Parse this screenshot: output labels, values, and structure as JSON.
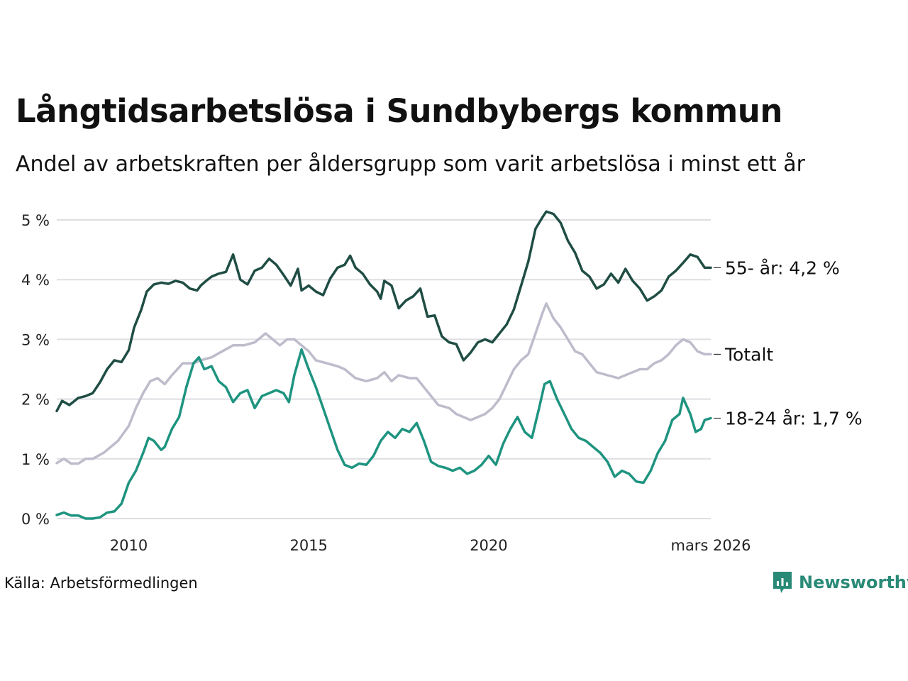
{
  "title": "Långtidsarbetslösa i Sundbybergs kommun",
  "subtitle": "Andel av arbetskraften per åldersgrupp som varit arbetslösa i minst ett år",
  "source": "Källa: Arbetsförmedlingen",
  "brand": {
    "name": "Newsworthy",
    "color": "#2a8a78"
  },
  "chart_data": {
    "type": "line",
    "title": "Långtidsarbetslösa i Sundbybergs kommun",
    "ylabel": "",
    "xlabel": "",
    "xlim": [
      2008.0,
      2026.17
    ],
    "ylim": [
      0,
      5
    ],
    "y_ticks": [
      0,
      1,
      2,
      3,
      4,
      5
    ],
    "y_tick_labels": [
      "0 %",
      "1 %",
      "2 %",
      "3 %",
      "4 %",
      "5 %"
    ],
    "x_ticks": [
      2010,
      2015,
      2020,
      2026.17
    ],
    "x_tick_labels": [
      "2010",
      "2015",
      "2020",
      "mars 2026"
    ],
    "series": [
      {
        "name": "55- år",
        "label": "55- år: 4,2 %",
        "color": "#1f4d44",
        "points": [
          [
            2008.0,
            1.8
          ],
          [
            2008.15,
            1.97
          ],
          [
            2008.35,
            1.9
          ],
          [
            2008.6,
            2.02
          ],
          [
            2008.8,
            2.05
          ],
          [
            2009.0,
            2.1
          ],
          [
            2009.2,
            2.28
          ],
          [
            2009.4,
            2.5
          ],
          [
            2009.6,
            2.65
          ],
          [
            2009.8,
            2.62
          ],
          [
            2010.0,
            2.82
          ],
          [
            2010.15,
            3.2
          ],
          [
            2010.35,
            3.5
          ],
          [
            2010.5,
            3.8
          ],
          [
            2010.7,
            3.92
          ],
          [
            2010.9,
            3.95
          ],
          [
            2011.1,
            3.93
          ],
          [
            2011.3,
            3.98
          ],
          [
            2011.5,
            3.95
          ],
          [
            2011.7,
            3.85
          ],
          [
            2011.9,
            3.82
          ],
          [
            2012.0,
            3.9
          ],
          [
            2012.15,
            3.98
          ],
          [
            2012.3,
            4.05
          ],
          [
            2012.5,
            4.1
          ],
          [
            2012.7,
            4.13
          ],
          [
            2012.9,
            4.42
          ],
          [
            2013.1,
            4.0
          ],
          [
            2013.3,
            3.92
          ],
          [
            2013.5,
            4.15
          ],
          [
            2013.7,
            4.2
          ],
          [
            2013.9,
            4.35
          ],
          [
            2014.1,
            4.25
          ],
          [
            2014.3,
            4.08
          ],
          [
            2014.5,
            3.9
          ],
          [
            2014.7,
            4.18
          ],
          [
            2014.8,
            3.82
          ],
          [
            2015.0,
            3.9
          ],
          [
            2015.2,
            3.8
          ],
          [
            2015.4,
            3.74
          ],
          [
            2015.6,
            4.02
          ],
          [
            2015.8,
            4.2
          ],
          [
            2016.0,
            4.25
          ],
          [
            2016.15,
            4.4
          ],
          [
            2016.3,
            4.2
          ],
          [
            2016.5,
            4.1
          ],
          [
            2016.7,
            3.92
          ],
          [
            2016.9,
            3.8
          ],
          [
            2017.0,
            3.68
          ],
          [
            2017.1,
            3.98
          ],
          [
            2017.3,
            3.9
          ],
          [
            2017.5,
            3.52
          ],
          [
            2017.7,
            3.65
          ],
          [
            2017.9,
            3.72
          ],
          [
            2018.1,
            3.85
          ],
          [
            2018.3,
            3.38
          ],
          [
            2018.5,
            3.4
          ],
          [
            2018.7,
            3.05
          ],
          [
            2018.9,
            2.95
          ],
          [
            2019.1,
            2.92
          ],
          [
            2019.3,
            2.65
          ],
          [
            2019.5,
            2.78
          ],
          [
            2019.7,
            2.95
          ],
          [
            2019.9,
            3.0
          ],
          [
            2020.1,
            2.95
          ],
          [
            2020.3,
            3.1
          ],
          [
            2020.5,
            3.25
          ],
          [
            2020.7,
            3.5
          ],
          [
            2020.9,
            3.9
          ],
          [
            2021.1,
            4.3
          ],
          [
            2021.3,
            4.85
          ],
          [
            2021.5,
            5.05
          ],
          [
            2021.6,
            5.14
          ],
          [
            2021.8,
            5.1
          ],
          [
            2022.0,
            4.95
          ],
          [
            2022.2,
            4.65
          ],
          [
            2022.4,
            4.45
          ],
          [
            2022.6,
            4.15
          ],
          [
            2022.8,
            4.05
          ],
          [
            2023.0,
            3.85
          ],
          [
            2023.2,
            3.92
          ],
          [
            2023.4,
            4.1
          ],
          [
            2023.6,
            3.95
          ],
          [
            2023.8,
            4.18
          ],
          [
            2024.0,
            3.98
          ],
          [
            2024.2,
            3.85
          ],
          [
            2024.4,
            3.65
          ],
          [
            2024.6,
            3.72
          ],
          [
            2024.8,
            3.82
          ],
          [
            2025.0,
            4.05
          ],
          [
            2025.2,
            4.15
          ],
          [
            2025.4,
            4.28
          ],
          [
            2025.6,
            4.42
          ],
          [
            2025.8,
            4.38
          ],
          [
            2026.0,
            4.2
          ],
          [
            2026.17,
            4.2
          ]
        ]
      },
      {
        "name": "Totalt",
        "label": "Totalt",
        "color": "#bdbccb",
        "points": [
          [
            2008.0,
            0.93
          ],
          [
            2008.2,
            1.0
          ],
          [
            2008.4,
            0.92
          ],
          [
            2008.6,
            0.92
          ],
          [
            2008.8,
            1.0
          ],
          [
            2009.0,
            1.0
          ],
          [
            2009.3,
            1.1
          ],
          [
            2009.5,
            1.2
          ],
          [
            2009.7,
            1.3
          ],
          [
            2010.0,
            1.55
          ],
          [
            2010.2,
            1.85
          ],
          [
            2010.4,
            2.1
          ],
          [
            2010.6,
            2.3
          ],
          [
            2010.8,
            2.35
          ],
          [
            2011.0,
            2.25
          ],
          [
            2011.2,
            2.4
          ],
          [
            2011.5,
            2.6
          ],
          [
            2011.8,
            2.6
          ],
          [
            2012.0,
            2.65
          ],
          [
            2012.3,
            2.7
          ],
          [
            2012.6,
            2.8
          ],
          [
            2012.9,
            2.9
          ],
          [
            2013.2,
            2.9
          ],
          [
            2013.5,
            2.95
          ],
          [
            2013.8,
            3.1
          ],
          [
            2014.0,
            3.0
          ],
          [
            2014.2,
            2.9
          ],
          [
            2014.4,
            3.0
          ],
          [
            2014.6,
            3.0
          ],
          [
            2014.8,
            2.9
          ],
          [
            2015.0,
            2.8
          ],
          [
            2015.2,
            2.65
          ],
          [
            2015.5,
            2.6
          ],
          [
            2015.8,
            2.55
          ],
          [
            2016.0,
            2.5
          ],
          [
            2016.3,
            2.35
          ],
          [
            2016.6,
            2.3
          ],
          [
            2016.9,
            2.35
          ],
          [
            2017.1,
            2.45
          ],
          [
            2017.3,
            2.3
          ],
          [
            2017.5,
            2.4
          ],
          [
            2017.8,
            2.35
          ],
          [
            2018.0,
            2.35
          ],
          [
            2018.2,
            2.2
          ],
          [
            2018.4,
            2.05
          ],
          [
            2018.6,
            1.9
          ],
          [
            2018.9,
            1.85
          ],
          [
            2019.1,
            1.75
          ],
          [
            2019.3,
            1.7
          ],
          [
            2019.5,
            1.65
          ],
          [
            2019.7,
            1.7
          ],
          [
            2019.9,
            1.75
          ],
          [
            2020.1,
            1.85
          ],
          [
            2020.3,
            2.0
          ],
          [
            2020.5,
            2.25
          ],
          [
            2020.7,
            2.5
          ],
          [
            2020.9,
            2.65
          ],
          [
            2021.1,
            2.75
          ],
          [
            2021.3,
            3.1
          ],
          [
            2021.5,
            3.45
          ],
          [
            2021.6,
            3.6
          ],
          [
            2021.8,
            3.35
          ],
          [
            2022.0,
            3.2
          ],
          [
            2022.2,
            3.0
          ],
          [
            2022.4,
            2.8
          ],
          [
            2022.6,
            2.75
          ],
          [
            2022.8,
            2.6
          ],
          [
            2023.0,
            2.45
          ],
          [
            2023.3,
            2.4
          ],
          [
            2023.6,
            2.35
          ],
          [
            2023.8,
            2.4
          ],
          [
            2024.0,
            2.45
          ],
          [
            2024.2,
            2.5
          ],
          [
            2024.4,
            2.5
          ],
          [
            2024.6,
            2.6
          ],
          [
            2024.8,
            2.65
          ],
          [
            2025.0,
            2.75
          ],
          [
            2025.2,
            2.9
          ],
          [
            2025.4,
            3.0
          ],
          [
            2025.6,
            2.95
          ],
          [
            2025.8,
            2.8
          ],
          [
            2026.0,
            2.75
          ],
          [
            2026.17,
            2.75
          ]
        ]
      },
      {
        "name": "18-24 år",
        "label": "18-24 år: 1,7 %",
        "color": "#1e9480",
        "points": [
          [
            2008.0,
            0.06
          ],
          [
            2008.2,
            0.1
          ],
          [
            2008.4,
            0.05
          ],
          [
            2008.6,
            0.05
          ],
          [
            2008.8,
            0.0
          ],
          [
            2009.0,
            0.0
          ],
          [
            2009.2,
            0.02
          ],
          [
            2009.4,
            0.1
          ],
          [
            2009.6,
            0.12
          ],
          [
            2009.8,
            0.25
          ],
          [
            2010.0,
            0.6
          ],
          [
            2010.2,
            0.8
          ],
          [
            2010.4,
            1.1
          ],
          [
            2010.55,
            1.35
          ],
          [
            2010.7,
            1.3
          ],
          [
            2010.9,
            1.15
          ],
          [
            2011.0,
            1.2
          ],
          [
            2011.2,
            1.5
          ],
          [
            2011.4,
            1.7
          ],
          [
            2011.6,
            2.2
          ],
          [
            2011.8,
            2.6
          ],
          [
            2011.95,
            2.7
          ],
          [
            2012.1,
            2.5
          ],
          [
            2012.3,
            2.55
          ],
          [
            2012.5,
            2.3
          ],
          [
            2012.7,
            2.2
          ],
          [
            2012.9,
            1.95
          ],
          [
            2013.1,
            2.1
          ],
          [
            2013.3,
            2.15
          ],
          [
            2013.5,
            1.85
          ],
          [
            2013.7,
            2.05
          ],
          [
            2013.9,
            2.1
          ],
          [
            2014.1,
            2.15
          ],
          [
            2014.3,
            2.1
          ],
          [
            2014.45,
            1.95
          ],
          [
            2014.6,
            2.4
          ],
          [
            2014.8,
            2.83
          ],
          [
            2015.0,
            2.5
          ],
          [
            2015.2,
            2.2
          ],
          [
            2015.4,
            1.85
          ],
          [
            2015.6,
            1.5
          ],
          [
            2015.8,
            1.15
          ],
          [
            2016.0,
            0.9
          ],
          [
            2016.2,
            0.85
          ],
          [
            2016.4,
            0.92
          ],
          [
            2016.6,
            0.9
          ],
          [
            2016.8,
            1.05
          ],
          [
            2017.0,
            1.3
          ],
          [
            2017.2,
            1.45
          ],
          [
            2017.4,
            1.35
          ],
          [
            2017.6,
            1.5
          ],
          [
            2017.8,
            1.45
          ],
          [
            2018.0,
            1.6
          ],
          [
            2018.2,
            1.3
          ],
          [
            2018.4,
            0.95
          ],
          [
            2018.6,
            0.88
          ],
          [
            2018.8,
            0.85
          ],
          [
            2019.0,
            0.8
          ],
          [
            2019.2,
            0.85
          ],
          [
            2019.4,
            0.75
          ],
          [
            2019.6,
            0.8
          ],
          [
            2019.8,
            0.9
          ],
          [
            2020.0,
            1.05
          ],
          [
            2020.2,
            0.9
          ],
          [
            2020.4,
            1.25
          ],
          [
            2020.6,
            1.5
          ],
          [
            2020.8,
            1.7
          ],
          [
            2021.0,
            1.45
          ],
          [
            2021.2,
            1.35
          ],
          [
            2021.4,
            1.85
          ],
          [
            2021.55,
            2.25
          ],
          [
            2021.7,
            2.3
          ],
          [
            2021.9,
            2.0
          ],
          [
            2022.1,
            1.75
          ],
          [
            2022.3,
            1.5
          ],
          [
            2022.5,
            1.35
          ],
          [
            2022.7,
            1.3
          ],
          [
            2022.9,
            1.2
          ],
          [
            2023.1,
            1.1
          ],
          [
            2023.3,
            0.95
          ],
          [
            2023.5,
            0.7
          ],
          [
            2023.7,
            0.8
          ],
          [
            2023.9,
            0.75
          ],
          [
            2024.1,
            0.62
          ],
          [
            2024.3,
            0.6
          ],
          [
            2024.5,
            0.8
          ],
          [
            2024.7,
            1.1
          ],
          [
            2024.9,
            1.3
          ],
          [
            2025.1,
            1.65
          ],
          [
            2025.3,
            1.75
          ],
          [
            2025.4,
            2.02
          ],
          [
            2025.6,
            1.75
          ],
          [
            2025.75,
            1.45
          ],
          [
            2025.9,
            1.5
          ],
          [
            2026.0,
            1.65
          ],
          [
            2026.17,
            1.68
          ]
        ]
      }
    ]
  }
}
